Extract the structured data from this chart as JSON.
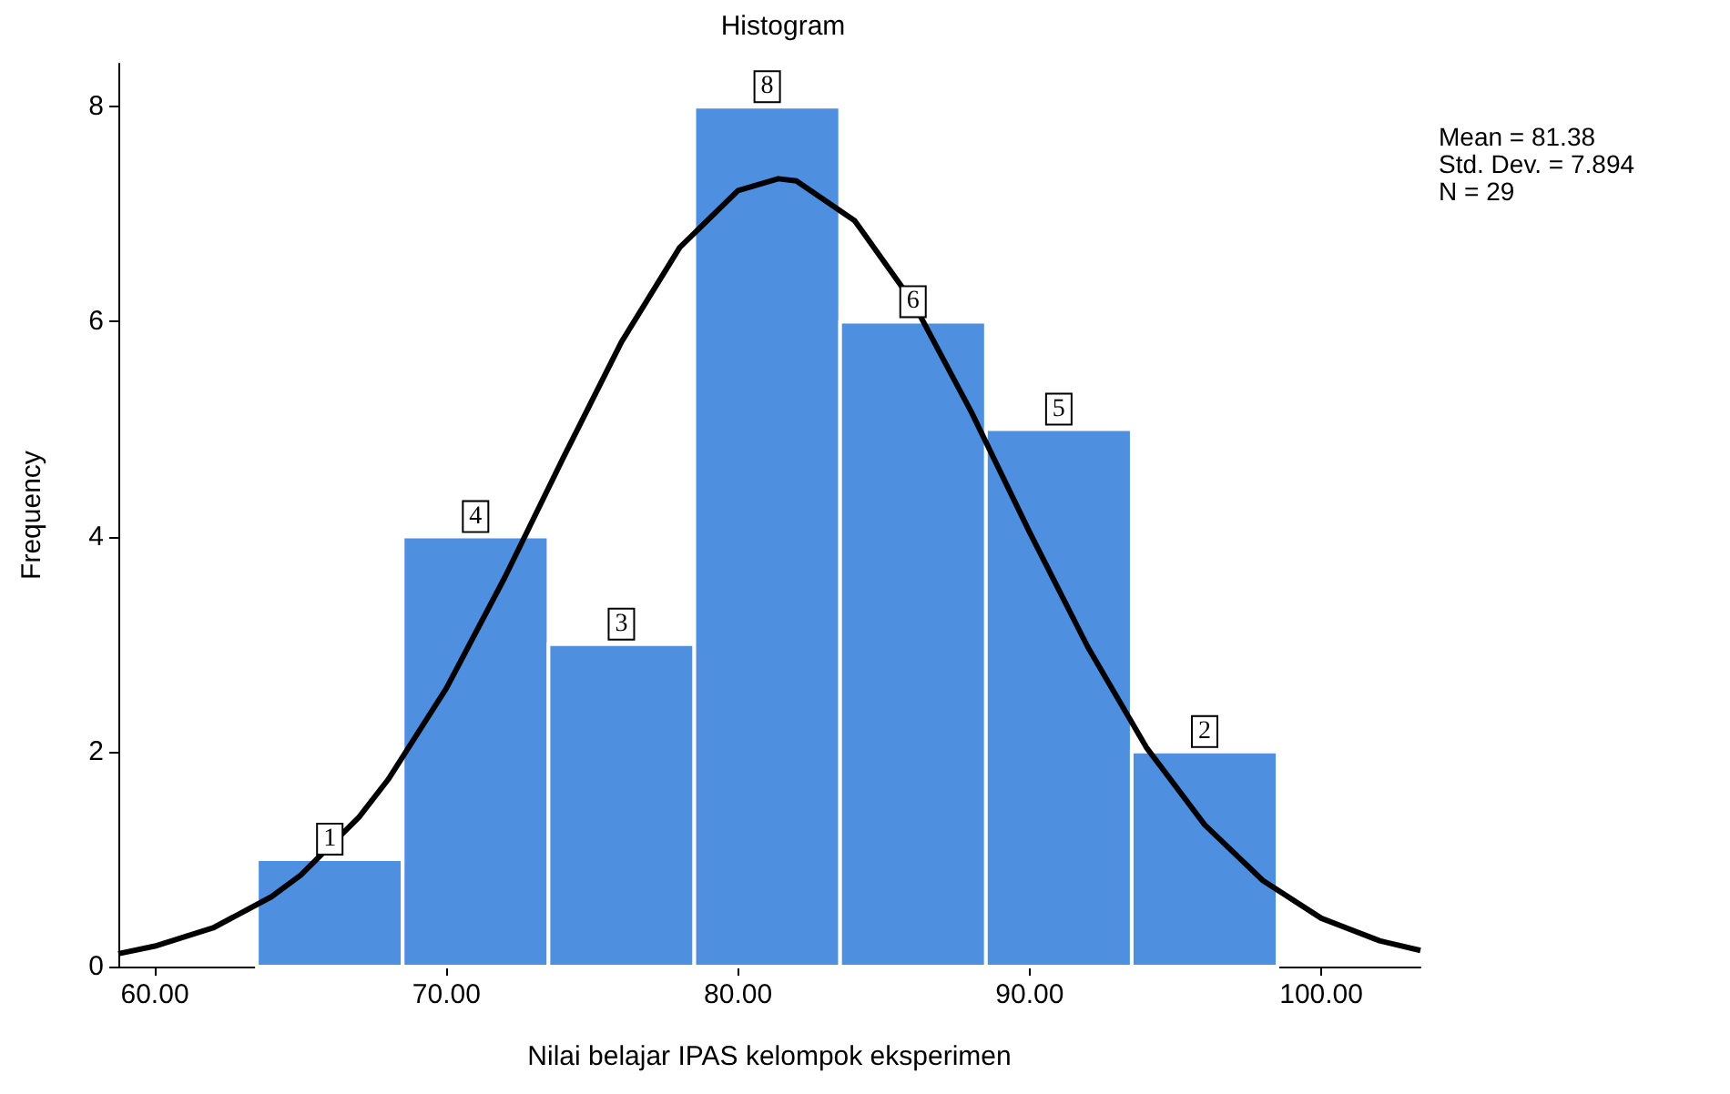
{
  "chart_data": {
    "type": "histogram",
    "title": "Histogram",
    "xlabel": "Nilai belajar IPAS kelompok eksperimen",
    "ylabel": "Frequency",
    "annotations": [
      "Mean = 81.38",
      "Std. Dev. = 7.894",
      "N = 29"
    ],
    "series": [
      {
        "color": "#4f8fe0",
        "bins": [
          63.5,
          68.5,
          73.5,
          78.5,
          83.5,
          88.5,
          93.5,
          98.5
        ],
        "values": [
          1,
          4,
          3,
          8,
          6,
          5,
          2
        ],
        "value_labels": [
          "1",
          "4",
          "3",
          "8",
          "6",
          "5",
          "2"
        ]
      },
      {
        "type": "line",
        "color": "#000000",
        "x": [
          58.75,
          60,
          62,
          64,
          65,
          67,
          68,
          70,
          72,
          74,
          76,
          78,
          80,
          81.38,
          82,
          84,
          86,
          88,
          90,
          92,
          94,
          96,
          98,
          100,
          102,
          103.4
        ],
        "values": [
          0.12,
          0.19,
          0.36,
          0.65,
          0.85,
          1.39,
          1.74,
          2.59,
          3.62,
          4.73,
          5.81,
          6.69,
          7.22,
          7.33,
          7.31,
          6.94,
          6.18,
          5.16,
          4.04,
          2.97,
          2.04,
          1.32,
          0.8,
          0.45,
          0.24,
          0.15
        ]
      }
    ],
    "marker": "none",
    "grid": false,
    "xlim": [
      58.75,
      103.4
    ],
    "ylim": [
      0,
      8.4
    ],
    "xticks": [
      {
        "value": 60,
        "label": "60.00"
      },
      {
        "value": 70,
        "label": "70.00"
      },
      {
        "value": 80,
        "label": "80.00"
      },
      {
        "value": 90,
        "label": "90.00"
      },
      {
        "value": 100,
        "label": "100.00"
      }
    ],
    "yticks": [
      0,
      2,
      4,
      6,
      8
    ]
  }
}
